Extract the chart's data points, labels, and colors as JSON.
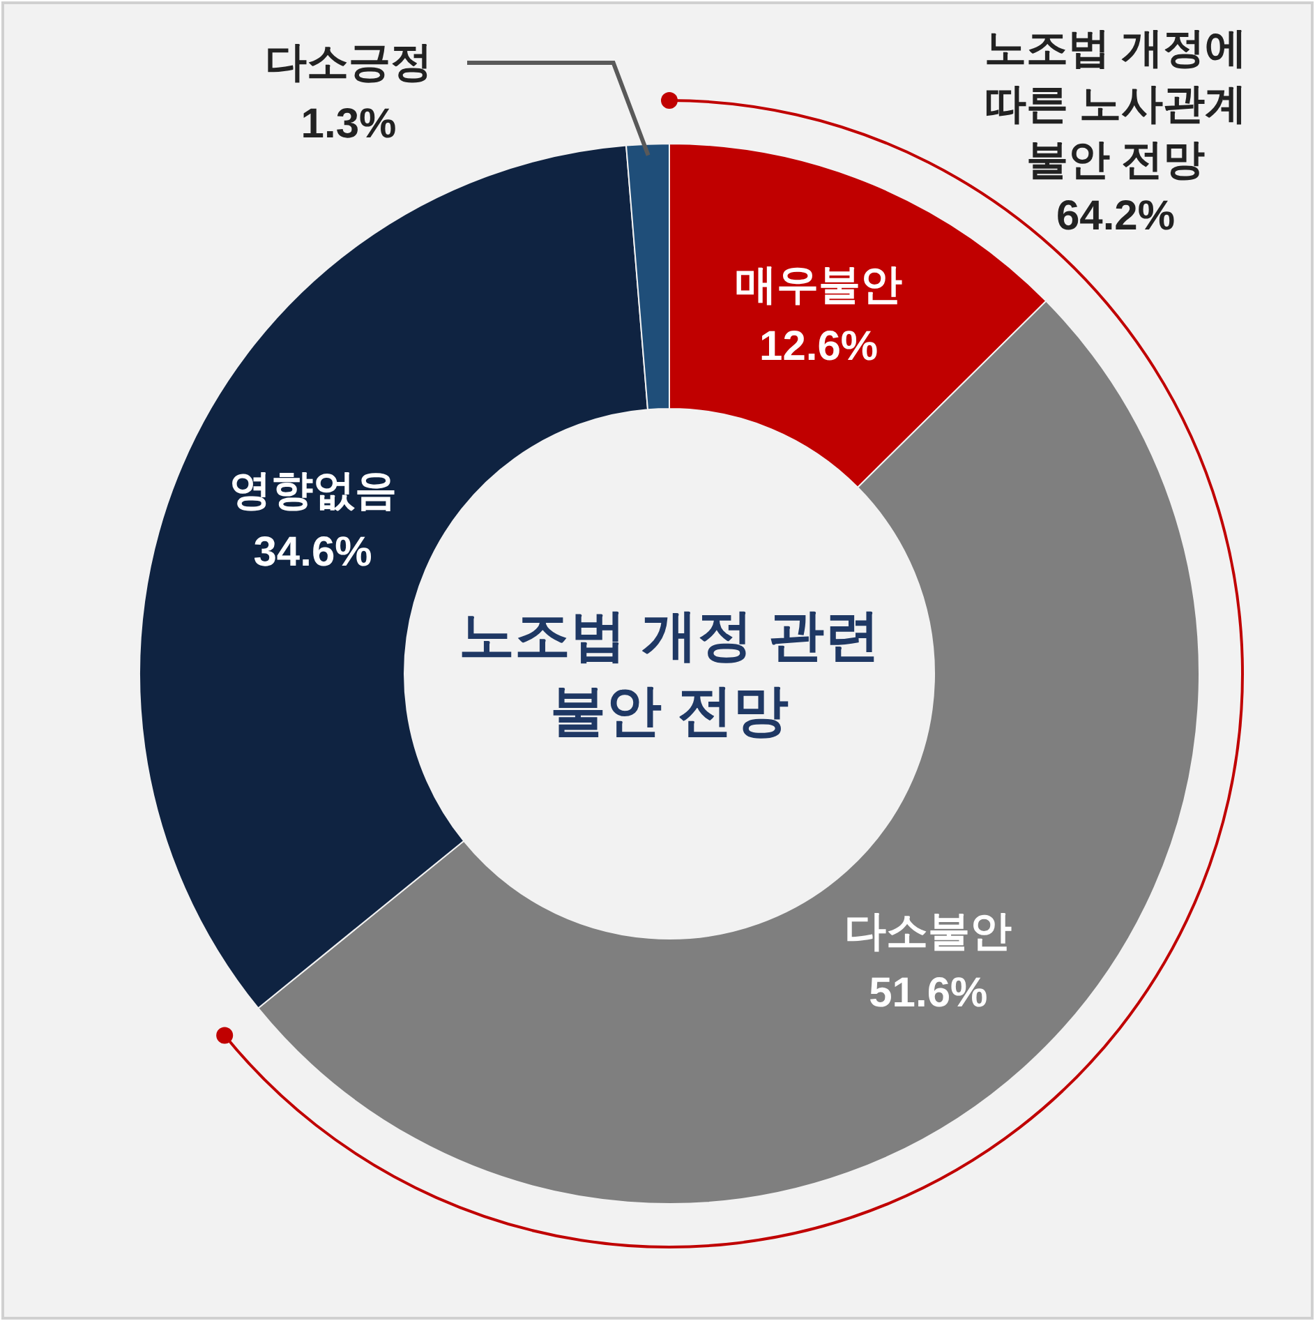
{
  "chart_data": {
    "type": "donut",
    "title": "노조법 개정 관련\n불안 전망",
    "categories": [
      "매우불안",
      "다소불안",
      "영향없음",
      "다소긍정"
    ],
    "values": [
      12.6,
      51.6,
      34.6,
      1.3
    ],
    "value_labels": [
      "12.6%",
      "51.6%",
      "34.6%",
      "1.3%"
    ],
    "colors": [
      "#c00000",
      "#7f7f7f",
      "#0f2341",
      "#1f4e79"
    ],
    "annotations": [
      "노조법 개정에\n따른 노사관계\n불안 전망\n64.2%"
    ]
  }
}
